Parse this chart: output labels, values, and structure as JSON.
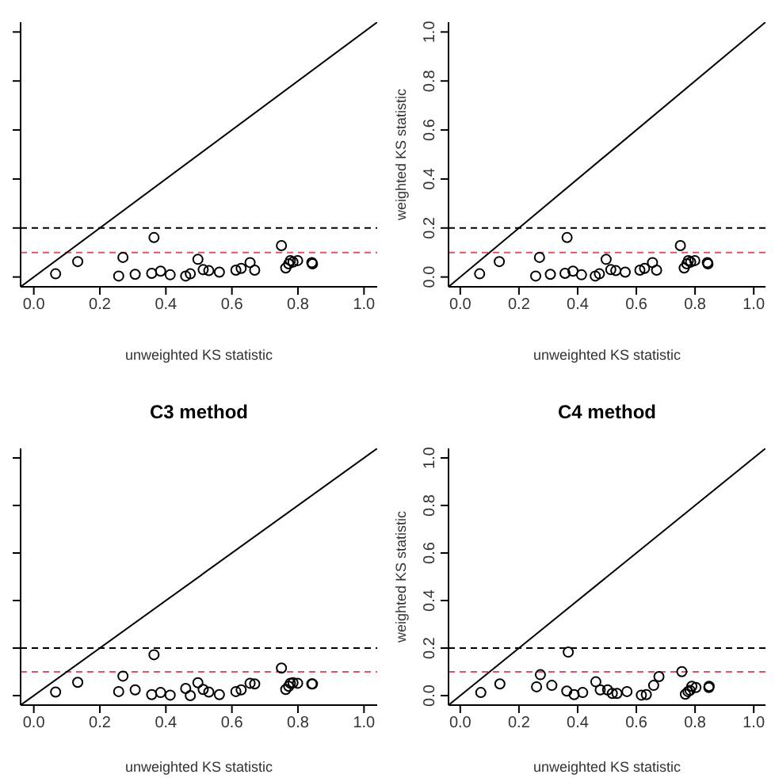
{
  "chart_data": [
    {
      "type": "scatter",
      "xlabel": "unweighted KS statistic",
      "xlim": [
        -0.04,
        1.04
      ],
      "ylim": [
        -0.04,
        1.04
      ],
      "xticks": [
        {
          "value": 0,
          "label": "0.0"
        },
        {
          "value": 0.2,
          "label": "0.2"
        },
        {
          "value": 0.4,
          "label": "0.4"
        },
        {
          "value": 0.6,
          "label": "0.6"
        },
        {
          "value": 0.8,
          "label": "0.8"
        },
        {
          "value": 1,
          "label": "1.0"
        }
      ],
      "yticks": [
        {
          "value": 0,
          "label": null
        },
        {
          "value": 0.2,
          "label": null
        },
        {
          "value": 0.4,
          "label": null
        },
        {
          "value": 0.6,
          "label": null
        },
        {
          "value": 0.8,
          "label": null
        },
        {
          "value": 1,
          "label": null
        }
      ],
      "tick_labels": "x",
      "grid": false,
      "legend": false,
      "marker": "circle",
      "ref_lines": [
        {
          "axis": "y",
          "value": 0.2,
          "color": "#000000",
          "line_style": "dashed"
        },
        {
          "axis": "y",
          "value": 0.1,
          "color": "#df536b",
          "line_style": "dashed"
        }
      ],
      "series": [
        {
          "color": "#000000",
          "x": [
            0.066,
            0.133,
            0.27,
            0.257,
            0.307,
            0.364,
            0.357,
            0.384,
            0.413,
            0.46,
            0.474,
            0.497,
            0.513,
            0.53,
            0.562,
            0.612,
            0.628,
            0.655,
            0.669,
            0.75,
            0.763,
            0.772,
            0.777,
            0.785,
            0.799,
            0.842,
            0.844
          ],
          "values": [
            0.013,
            0.063,
            0.08,
            0.004,
            0.011,
            0.161,
            0.015,
            0.024,
            0.009,
            0.004,
            0.013,
            0.072,
            0.03,
            0.026,
            0.02,
            0.028,
            0.035,
            0.059,
            0.028,
            0.128,
            0.037,
            0.054,
            0.067,
            0.061,
            0.067,
            0.059,
            0.054
          ]
        },
        {
          "type": "line",
          "color": "#000000",
          "line_style": "solid",
          "marker": "none",
          "x": [
            -0.04,
            1.04
          ],
          "values": [
            -0.04,
            1.04
          ]
        }
      ]
    },
    {
      "type": "scatter",
      "xlabel": "unweighted KS statistic",
      "ylabel": "weighted KS statistic",
      "xlim": [
        -0.04,
        1.04
      ],
      "ylim": [
        -0.04,
        1.04
      ],
      "xticks": [
        {
          "value": 0,
          "label": "0.0"
        },
        {
          "value": 0.2,
          "label": "0.2"
        },
        {
          "value": 0.4,
          "label": "0.4"
        },
        {
          "value": 0.6,
          "label": "0.6"
        },
        {
          "value": 0.8,
          "label": "0.8"
        },
        {
          "value": 1,
          "label": "1.0"
        }
      ],
      "yticks": [
        {
          "value": 0,
          "label": "0.0"
        },
        {
          "value": 0.2,
          "label": "0.2"
        },
        {
          "value": 0.4,
          "label": "0.4"
        },
        {
          "value": 0.6,
          "label": "0.6"
        },
        {
          "value": 0.8,
          "label": "0.8"
        },
        {
          "value": 1,
          "label": "1.0"
        }
      ],
      "grid": false,
      "legend": false,
      "marker": "circle",
      "ref_lines": [
        {
          "axis": "y",
          "value": 0.2,
          "color": "#000000",
          "line_style": "dashed"
        },
        {
          "axis": "y",
          "value": 0.1,
          "color": "#df536b",
          "line_style": "dashed"
        }
      ],
      "series": [
        {
          "color": "#000000",
          "x": [
            0.066,
            0.133,
            0.27,
            0.257,
            0.307,
            0.364,
            0.357,
            0.384,
            0.413,
            0.46,
            0.474,
            0.497,
            0.513,
            0.53,
            0.562,
            0.612,
            0.628,
            0.655,
            0.669,
            0.75,
            0.763,
            0.772,
            0.777,
            0.785,
            0.799,
            0.842,
            0.844
          ],
          "values": [
            0.013,
            0.063,
            0.08,
            0.004,
            0.011,
            0.161,
            0.015,
            0.024,
            0.009,
            0.004,
            0.013,
            0.072,
            0.03,
            0.026,
            0.02,
            0.028,
            0.035,
            0.059,
            0.028,
            0.128,
            0.037,
            0.054,
            0.067,
            0.061,
            0.067,
            0.059,
            0.054
          ]
        },
        {
          "type": "line",
          "color": "#000000",
          "line_style": "solid",
          "marker": "none",
          "x": [
            -0.04,
            1.04
          ],
          "values": [
            -0.04,
            1.04
          ]
        }
      ]
    },
    {
      "type": "scatter",
      "title": "C3 method",
      "xlabel": "unweighted KS statistic",
      "xlim": [
        -0.04,
        1.04
      ],
      "ylim": [
        -0.04,
        1.04
      ],
      "xticks": [
        {
          "value": 0,
          "label": "0.0"
        },
        {
          "value": 0.2,
          "label": "0.2"
        },
        {
          "value": 0.4,
          "label": "0.4"
        },
        {
          "value": 0.6,
          "label": "0.6"
        },
        {
          "value": 0.8,
          "label": "0.8"
        },
        {
          "value": 1,
          "label": "1.0"
        }
      ],
      "yticks": [
        {
          "value": 0,
          "label": null
        },
        {
          "value": 0.2,
          "label": null
        },
        {
          "value": 0.4,
          "label": null
        },
        {
          "value": 0.6,
          "label": null
        },
        {
          "value": 0.8,
          "label": null
        },
        {
          "value": 1,
          "label": null
        }
      ],
      "tick_labels": "x",
      "grid": false,
      "legend": false,
      "marker": "circle",
      "ref_lines": [
        {
          "axis": "y",
          "value": 0.2,
          "color": "#000000",
          "line_style": "dashed"
        },
        {
          "axis": "y",
          "value": 0.1,
          "color": "#df536b",
          "line_style": "dashed"
        }
      ],
      "series": [
        {
          "color": "#000000",
          "x": [
            0.066,
            0.133,
            0.27,
            0.257,
            0.307,
            0.364,
            0.357,
            0.384,
            0.413,
            0.46,
            0.474,
            0.497,
            0.513,
            0.53,
            0.562,
            0.612,
            0.628,
            0.655,
            0.669,
            0.75,
            0.763,
            0.772,
            0.777,
            0.785,
            0.799,
            0.842,
            0.844
          ],
          "values": [
            0.015,
            0.056,
            0.082,
            0.017,
            0.024,
            0.172,
            0.004,
            0.013,
            0.002,
            0.03,
            0,
            0.054,
            0.026,
            0.015,
            0.004,
            0.017,
            0.024,
            0.052,
            0.049,
            0.116,
            0.026,
            0.039,
            0.052,
            0.054,
            0.052,
            0.049,
            0.049
          ]
        },
        {
          "type": "line",
          "color": "#000000",
          "line_style": "solid",
          "marker": "none",
          "x": [
            -0.04,
            1.04
          ],
          "values": [
            -0.04,
            1.04
          ]
        }
      ]
    },
    {
      "type": "scatter",
      "title": "C4 method",
      "xlabel": "unweighted KS statistic",
      "ylabel": "weighted KS statistic",
      "xlim": [
        -0.04,
        1.04
      ],
      "ylim": [
        -0.04,
        1.04
      ],
      "xticks": [
        {
          "value": 0,
          "label": "0.0"
        },
        {
          "value": 0.2,
          "label": "0.2"
        },
        {
          "value": 0.4,
          "label": "0.4"
        },
        {
          "value": 0.6,
          "label": "0.6"
        },
        {
          "value": 0.8,
          "label": "0.8"
        },
        {
          "value": 1,
          "label": "1.0"
        }
      ],
      "yticks": [
        {
          "value": 0,
          "label": "0.0"
        },
        {
          "value": 0.2,
          "label": "0.2"
        },
        {
          "value": 0.4,
          "label": "0.4"
        },
        {
          "value": 0.6,
          "label": "0.6"
        },
        {
          "value": 0.8,
          "label": "0.8"
        },
        {
          "value": 1,
          "label": "1.0"
        }
      ],
      "grid": false,
      "legend": false,
      "marker": "circle",
      "ref_lines": [
        {
          "axis": "y",
          "value": 0.2,
          "color": "#000000",
          "line_style": "dashed"
        },
        {
          "axis": "y",
          "value": 0.1,
          "color": "#df536b",
          "line_style": "dashed"
        }
      ],
      "series": [
        {
          "color": "#000000",
          "x": [
            0.07,
            0.135,
            0.273,
            0.26,
            0.312,
            0.368,
            0.363,
            0.388,
            0.417,
            0.462,
            0.477,
            0.502,
            0.518,
            0.534,
            0.568,
            0.617,
            0.634,
            0.659,
            0.677,
            0.755,
            0.767,
            0.776,
            0.783,
            0.789,
            0.803,
            0.847,
            0.848
          ],
          "values": [
            0.013,
            0.049,
            0.088,
            0.037,
            0.043,
            0.183,
            0.019,
            0.004,
            0.013,
            0.058,
            0.024,
            0.024,
            0.009,
            0.009,
            0.017,
            0.002,
            0.004,
            0.043,
            0.08,
            0.101,
            0.006,
            0.017,
            0.022,
            0.039,
            0.034,
            0.034,
            0.039
          ]
        },
        {
          "type": "line",
          "color": "#000000",
          "line_style": "solid",
          "marker": "none",
          "x": [
            -0.04,
            1.04
          ],
          "values": [
            -0.04,
            1.04
          ]
        }
      ]
    }
  ]
}
